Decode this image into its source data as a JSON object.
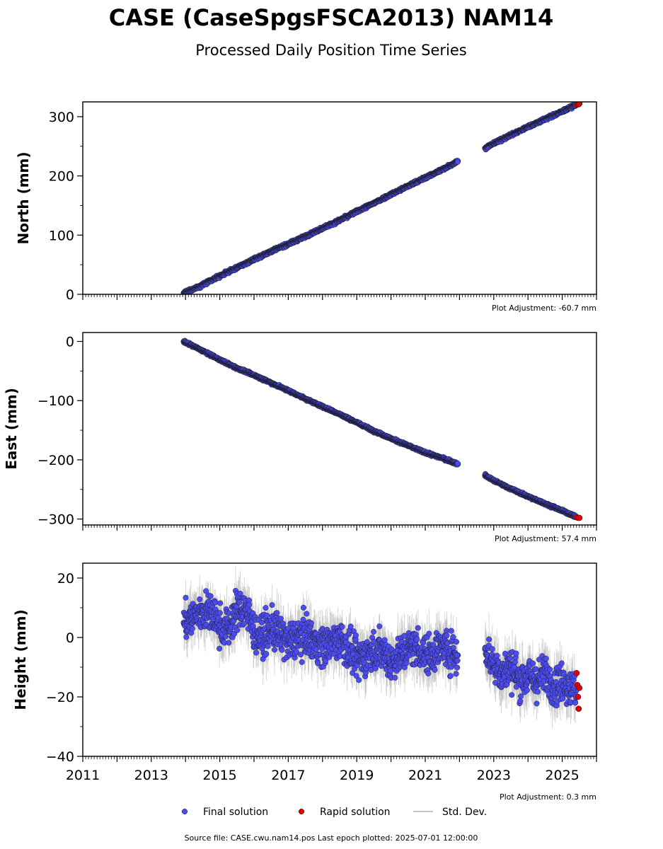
{
  "chart_data": {
    "type": "scatter",
    "title": "CASE (CaseSpgsFSCA2013) NAM14",
    "subtitle": "Processed Daily Position Time Series",
    "x_axis": {
      "range": [
        2011.0,
        2026.0
      ],
      "tick_labels": [
        "2011",
        "2013",
        "2015",
        "2017",
        "2019",
        "2021",
        "2023",
        "2025"
      ]
    },
    "colors": {
      "final": "#4b4bf0",
      "rapid": "#e60000",
      "std_dev": "#b4b4b4"
    },
    "legend": {
      "placement": "bottom-center",
      "items": [
        {
          "label": "Final solution",
          "color": "#4b4bf0",
          "marker": "circle"
        },
        {
          "label": "Rapid solution",
          "color": "#e60000",
          "marker": "circle"
        },
        {
          "label": "Std. Dev.",
          "color": "#b4b4b4",
          "marker": "line"
        }
      ]
    },
    "footer": "Source file: CASE.cwu.nam14.pos  Last epoch plotted: 2025-07-01 12:00:00",
    "panels": [
      {
        "ylabel": "North (mm)",
        "ylim": [
          0,
          325
        ],
        "y_ticks": [
          0,
          100,
          200,
          300
        ],
        "y_tick_labels": [
          "0",
          "100",
          "200",
          "300"
        ],
        "adjustment": "Plot Adjustment: -60.7 mm",
        "series": [
          {
            "name": "Final solution",
            "x": [
              2013.95,
              2014.5,
              2015.0,
              2015.5,
              2016.0,
              2016.5,
              2017.0,
              2017.5,
              2018.0,
              2018.5,
              2019.0,
              2019.5,
              2020.0,
              2020.5,
              2021.0,
              2021.5,
              2021.95
            ],
            "y": [
              2,
              16,
              31,
              45,
              59,
              73,
              85,
              98,
              112,
              125,
              140,
              154,
              169,
              183,
              197,
              211,
              225
            ]
          },
          {
            "name": "Final solution",
            "x": [
              2022.75,
              2023.0,
              2023.5,
              2024.0,
              2024.5,
              2025.0,
              2025.4
            ],
            "y": [
              247,
              255,
              269,
              283,
              296,
              309,
              320
            ]
          },
          {
            "name": "Rapid solution",
            "x": [
              2025.42,
              2025.45,
              2025.48,
              2025.5
            ],
            "y": [
              320,
              321,
              321,
              322
            ]
          }
        ]
      },
      {
        "ylabel": "East (mm)",
        "ylim": [
          -310,
          15
        ],
        "y_ticks": [
          -300,
          -200,
          -100,
          0
        ],
        "y_tick_labels": [
          "−300",
          "−200",
          "−100",
          "0"
        ],
        "adjustment": "Plot Adjustment: 57.4 mm",
        "series": [
          {
            "name": "Final solution",
            "x": [
              2013.95,
              2014.5,
              2015.0,
              2015.5,
              2016.0,
              2016.5,
              2017.0,
              2017.5,
              2018.0,
              2018.5,
              2019.0,
              2019.5,
              2020.0,
              2020.5,
              2021.0,
              2021.5,
              2021.95
            ],
            "y": [
              0,
              -16,
              -31,
              -45,
              -57,
              -70,
              -83,
              -97,
              -110,
              -123,
              -137,
              -151,
              -164,
              -176,
              -188,
              -197,
              -207
            ]
          },
          {
            "name": "Final solution",
            "x": [
              2022.75,
              2023.0,
              2023.5,
              2024.0,
              2024.5,
              2025.0,
              2025.4
            ],
            "y": [
              -226,
              -235,
              -249,
              -262,
              -274,
              -286,
              -296
            ]
          },
          {
            "name": "Rapid solution",
            "x": [
              2025.42,
              2025.46,
              2025.5
            ],
            "y": [
              -297,
              -298,
              -298
            ]
          }
        ]
      },
      {
        "ylabel": "Height (mm)",
        "ylim": [
          -40,
          25
        ],
        "y_ticks": [
          -40,
          -20,
          0,
          20
        ],
        "y_tick_labels": [
          "−40",
          "−20",
          "0",
          "20"
        ],
        "adjustment": "Plot Adjustment: 0.3 mm",
        "series": [
          {
            "name": "Final solution",
            "x": [
              2013.95,
              2014.25,
              2014.5,
              2014.75,
              2015.0,
              2015.25,
              2015.5,
              2015.75,
              2016.0,
              2016.25,
              2016.5,
              2016.75,
              2017.0,
              2017.25,
              2017.5,
              2017.75,
              2018.0,
              2018.25,
              2018.5,
              2018.75,
              2019.0,
              2019.25,
              2019.5,
              2019.75,
              2020.0,
              2020.25,
              2020.5,
              2020.75,
              2021.0,
              2021.25,
              2021.5,
              2021.75,
              2021.95
            ],
            "y": [
              5,
              7,
              9,
              8,
              4,
              3,
              9,
              10,
              2,
              0,
              3,
              1,
              -2,
              0,
              1,
              -1,
              -3,
              -2,
              0,
              -4,
              -8,
              -6,
              -5,
              -4,
              -8,
              -6,
              -4,
              -3,
              -6,
              -5,
              -3,
              -5,
              -6
            ]
          },
          {
            "name": "Final solution",
            "x": [
              2022.75,
              2023.0,
              2023.25,
              2023.5,
              2023.75,
              2024.0,
              2024.25,
              2024.5,
              2024.75,
              2025.0,
              2025.25,
              2025.4
            ],
            "y": [
              -4,
              -9,
              -12,
              -10,
              -14,
              -13,
              -15,
              -12,
              -16,
              -15,
              -17,
              -18
            ]
          },
          {
            "name": "Rapid solution",
            "x": [
              2025.42,
              2025.44,
              2025.46,
              2025.48,
              2025.5
            ],
            "y": [
              -12,
              -16,
              -20,
              -24,
              -17
            ]
          }
        ]
      }
    ]
  }
}
